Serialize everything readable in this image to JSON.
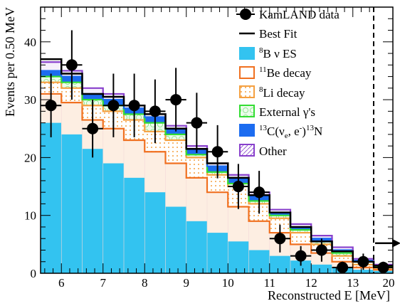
{
  "chart_data": {
    "type": "bar",
    "title": "",
    "xlabel": "Reconstructed E [MeV]",
    "ylabel": "Events per 0.50 MeV",
    "xlim": [
      5.5,
      20
    ],
    "ylim": [
      0,
      46
    ],
    "x_ticks": [
      6,
      7,
      8,
      9,
      10,
      11,
      12,
      13,
      20
    ],
    "x_tick_labels": [
      "6",
      "7",
      "8",
      "9",
      "10",
      "11",
      "12",
      "13",
      "20"
    ],
    "y_ticks": [
      0,
      10,
      20,
      30,
      40
    ],
    "y_tick_labels": [
      "0",
      "10",
      "20",
      "30",
      "40"
    ],
    "bin_edges": [
      5.5,
      6.0,
      6.5,
      7.0,
      7.5,
      8.0,
      8.5,
      9.0,
      9.5,
      10.0,
      10.5,
      11.0,
      11.5,
      12.0,
      12.5,
      13.0,
      13.5,
      20.0
    ],
    "threshold_line_x": 13.5,
    "overflow_arrow": true,
    "stack_series": [
      {
        "name": "⁸B ν ES",
        "fill": "#33c3f0",
        "edge": "#33c3f0",
        "cumulative": [
          26,
          24,
          21.5,
          19,
          16.5,
          14,
          11.5,
          9,
          7,
          5.5,
          4,
          3,
          2.2,
          1.5,
          1,
          0.6,
          0.4
        ]
      },
      {
        "name": "¹¹Be decay",
        "fill": "#fde9d8",
        "edge": "#f07020",
        "cumulative": [
          31,
          29.5,
          26.5,
          25,
          23,
          21,
          19,
          16.5,
          14,
          11.5,
          9,
          7,
          5,
          3.5,
          2,
          1,
          0.6
        ]
      },
      {
        "name": "⁸Li decay",
        "fill": "#fde2b8",
        "edge": "#f5a040",
        "cumulative": [
          33,
          32,
          29,
          28,
          26.5,
          24.5,
          23,
          20,
          17,
          15,
          12,
          9.5,
          7,
          5,
          3,
          1.5,
          0.9
        ]
      },
      {
        "name": "External γ's",
        "fill": "#e2fae2",
        "edge": "#33dd33",
        "cumulative": [
          34,
          33,
          30,
          29,
          27.5,
          26,
          24,
          20.5,
          17.5,
          15.5,
          12.5,
          10,
          7.5,
          5.5,
          3.5,
          2,
          1.1
        ]
      },
      {
        "name": "¹³C(νe, e⁻)¹³N",
        "fill": "#1c6cf0",
        "edge": "#1c6cf0",
        "cumulative": [
          35,
          34,
          31,
          30,
          28.5,
          27,
          25,
          21.5,
          18.5,
          16.5,
          13.5,
          10.5,
          8,
          6,
          4,
          2.2,
          1.3
        ]
      },
      {
        "name": "Other",
        "fill": "#f3ecfb",
        "edge": "#8840cc",
        "cumulative": [
          36.5,
          35,
          32,
          31,
          29,
          27.5,
          25.5,
          22,
          19,
          17,
          14,
          11,
          8.5,
          6.5,
          4.5,
          2.5,
          1.5
        ]
      }
    ],
    "best_fit": {
      "name": "Best Fit",
      "values": [
        37,
        34.5,
        31,
        30.5,
        29,
        27.5,
        25,
        21.5,
        19,
        16.5,
        13.5,
        10.5,
        8,
        5.5,
        3.8,
        2,
        1.3
      ]
    },
    "data_series": {
      "name": "KamLAND data",
      "x": [
        5.75,
        6.25,
        6.75,
        7.25,
        7.75,
        8.25,
        8.75,
        9.25,
        9.75,
        10.25,
        10.75,
        11.25,
        11.75,
        12.25,
        12.75,
        13.25,
        16.75
      ],
      "y": [
        29,
        36,
        25,
        29,
        29,
        28,
        30,
        26,
        21,
        15,
        14,
        6,
        3,
        4,
        1,
        2,
        1
      ],
      "err_lo": [
        5.5,
        6.0,
        5.0,
        5.5,
        5.5,
        5.5,
        5.5,
        5.2,
        4.6,
        3.9,
        3.7,
        2.4,
        1.7,
        2.0,
        1.0,
        1.4,
        1.0
      ],
      "err_hi": [
        5.5,
        6.0,
        5.0,
        5.5,
        5.5,
        5.5,
        5.5,
        5.2,
        4.6,
        3.9,
        3.7,
        2.4,
        1.7,
        2.0,
        1.0,
        1.4,
        1.0
      ]
    }
  },
  "legend": {
    "items": [
      {
        "label": "KamLAND data",
        "kind": "marker"
      },
      {
        "label": "Best Fit",
        "kind": "line"
      },
      {
        "sup": "8",
        "label": "B ν ES",
        "kind": "box"
      },
      {
        "sup": "11",
        "label": "Be decay",
        "kind": "box"
      },
      {
        "sup": "8",
        "label": "Li decay",
        "kind": "box"
      },
      {
        "label": "External γ's",
        "kind": "box"
      },
      {
        "label": "13C(νe, e-)13N",
        "kind": "box"
      },
      {
        "label": "Other",
        "kind": "box"
      }
    ],
    "text": {
      "s13a": "13",
      "c": "C(ν",
      "sub_e": "e",
      "comma": ", e",
      "sup_minus": "-",
      "close": ")",
      "s13b": "13",
      "n": "N"
    }
  }
}
